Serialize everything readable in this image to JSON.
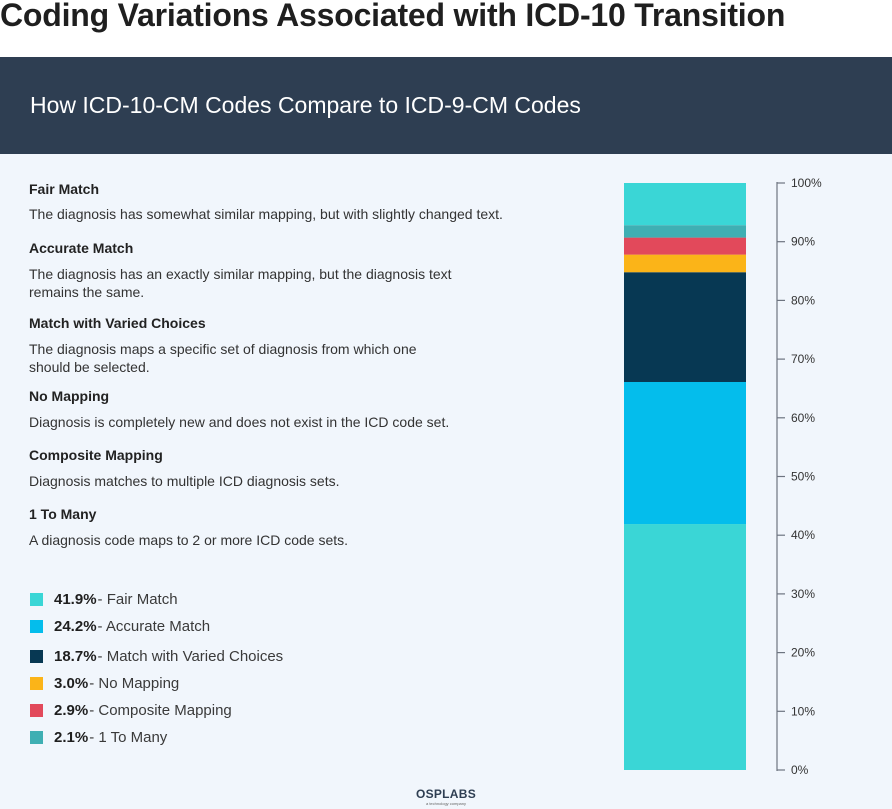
{
  "page_title": "Coding Variations Associated with ICD-10 Transition",
  "banner_title": "How ICD-10-CM Codes Compare to ICD-9-CM Codes",
  "definitions": [
    {
      "title": "Fair Match",
      "lines": [
        "The diagnosis has somewhat similar mapping, but with slightly changed text."
      ]
    },
    {
      "title": "Accurate Match",
      "lines": [
        "The diagnosis has an exactly similar mapping, but the diagnosis text",
        "remains the same."
      ]
    },
    {
      "title": "Match with Varied Choices",
      "lines": [
        "The diagnosis maps a specific set of diagnosis from which one",
        "should be selected."
      ]
    },
    {
      "title": "No Mapping",
      "lines": [
        "Diagnosis is completely new and does not exist in the ICD code set."
      ]
    },
    {
      "title": "Composite Mapping",
      "lines": [
        "Diagnosis matches to multiple ICD diagnosis sets."
      ]
    },
    {
      "title": "1 To Many",
      "lines": [
        "A diagnosis code maps to 2 or more ICD code sets."
      ]
    }
  ],
  "legend": [
    {
      "pct": "41.9%",
      "label": "- Fair Match"
    },
    {
      "pct": "24.2%",
      "label": "- Accurate Match"
    },
    {
      "pct": "18.7%",
      "label": "- Match with Varied Choices"
    },
    {
      "pct": "3.0%",
      "label": "- No Mapping"
    },
    {
      "pct": "2.9%",
      "label": "- Composite Mapping"
    },
    {
      "pct": "2.1%",
      "label": "- 1 To Many"
    }
  ],
  "logo": {
    "main": "OSPLABS",
    "sub": "a technology company"
  },
  "chart_data": {
    "type": "bar",
    "stacked": true,
    "categories": [
      ""
    ],
    "series": [
      {
        "name": "Fair Match",
        "values": [
          41.9
        ],
        "color": "#3ad6d6"
      },
      {
        "name": "Accurate Match",
        "values": [
          24.2
        ],
        "color": "#04bdec"
      },
      {
        "name": "Match with Varied Choices",
        "values": [
          18.7
        ],
        "color": "#073853"
      },
      {
        "name": "No Mapping",
        "values": [
          3.0
        ],
        "color": "#fbb418"
      },
      {
        "name": "Composite Mapping",
        "values": [
          2.9
        ],
        "color": "#e2495b"
      },
      {
        "name": "1 To Many",
        "values": [
          2.1
        ],
        "color": "#3fafb3"
      }
    ],
    "ylim": [
      0,
      100
    ],
    "yticks": [
      "0%",
      "10%",
      "20%",
      "30%",
      "40%",
      "50%",
      "60%",
      "70%",
      "80%",
      "90%",
      "100%"
    ],
    "legend_position": "left"
  }
}
